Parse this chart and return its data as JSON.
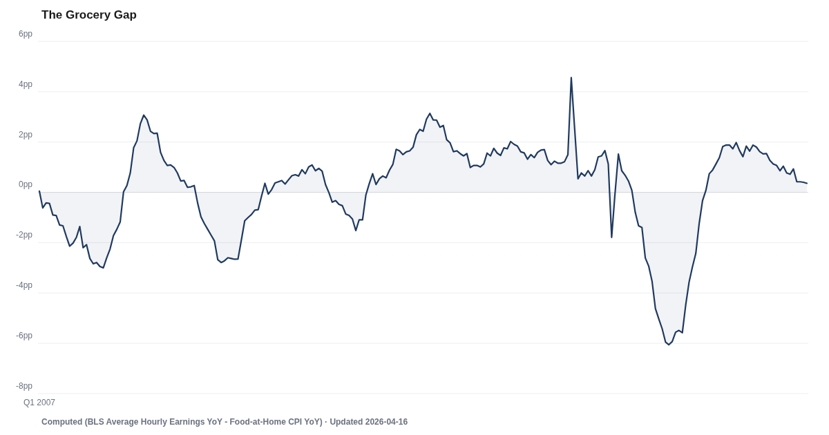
{
  "chart_data": {
    "type": "area",
    "title": "The Grocery Gap",
    "annotations": [
      "Computed (BLS Average Hourly Earnings YoY - Food-at-Home CPI YoY) · Updated 2026-04-16"
    ],
    "categories": [
      "Q1 2007",
      null,
      null,
      null,
      null,
      null,
      null,
      null,
      null,
      null,
      null,
      null,
      null,
      null,
      null,
      null,
      null,
      null,
      null,
      null,
      null,
      null,
      null,
      null,
      null,
      null,
      null,
      null,
      null,
      null,
      null,
      null,
      null,
      null,
      null,
      null,
      null,
      null,
      null,
      null,
      null,
      null,
      null,
      null,
      null,
      null,
      null,
      null,
      null,
      null,
      null,
      null,
      null,
      null,
      null,
      null,
      null,
      null,
      null,
      null,
      null,
      null,
      null,
      null,
      null,
      null,
      null,
      null,
      null,
      null,
      null,
      null,
      null,
      null,
      null,
      null,
      null,
      null,
      null,
      null,
      null,
      null,
      null,
      null,
      null,
      null,
      null,
      null,
      null,
      null,
      null,
      null,
      null,
      null,
      null,
      null,
      null,
      null,
      null,
      null,
      null,
      null,
      null,
      null,
      null,
      null,
      null,
      null,
      null,
      null,
      null,
      null,
      null,
      null,
      null,
      null,
      null,
      null,
      null,
      null,
      null,
      null,
      null,
      null,
      null,
      null,
      null,
      null,
      null,
      null,
      null,
      null,
      null,
      null,
      null,
      null,
      null,
      null,
      null,
      null,
      null,
      null,
      null,
      null,
      null,
      null,
      null,
      null,
      null,
      null,
      null,
      null,
      null,
      null,
      null,
      null,
      null,
      null,
      null,
      null,
      null,
      null,
      null,
      null,
      null,
      null,
      null,
      null,
      null,
      null,
      null,
      null,
      null,
      null,
      null,
      null,
      null,
      null,
      null,
      null,
      null,
      null,
      null,
      null,
      null,
      null,
      null,
      null,
      null,
      null,
      null,
      null,
      null,
      null,
      null,
      null,
      null,
      null,
      null,
      null,
      null,
      null,
      null,
      null,
      null,
      null,
      null,
      null,
      null,
      null,
      null,
      null,
      null,
      null,
      null,
      null,
      null,
      null,
      null,
      null,
      null,
      null,
      null,
      null,
      null,
      null,
      null,
      null,
      null
    ],
    "series": [
      {
        "color": "#1f3a5f",
        "values": [
          0.05,
          -0.62,
          -0.42,
          -0.44,
          -0.9,
          -0.92,
          -1.3,
          -1.33,
          -1.75,
          -2.14,
          -2.02,
          -1.79,
          -1.36,
          -2.2,
          -2.08,
          -2.63,
          -2.84,
          -2.79,
          -2.95,
          -3.0,
          -2.6,
          -2.25,
          -1.72,
          -1.47,
          -1.18,
          0.02,
          0.27,
          0.77,
          1.77,
          2.05,
          2.73,
          3.07,
          2.88,
          2.43,
          2.34,
          2.35,
          1.59,
          1.27,
          1.07,
          1.09,
          0.99,
          0.77,
          0.45,
          0.47,
          0.2,
          0.22,
          0.27,
          -0.42,
          -0.97,
          -1.24,
          -1.47,
          -1.7,
          -1.93,
          -2.68,
          -2.79,
          -2.72,
          -2.6,
          -2.63,
          -2.66,
          -2.65,
          -1.9,
          -1.13,
          -1.0,
          -0.88,
          -0.71,
          -0.69,
          -0.15,
          0.36,
          -0.07,
          0.11,
          0.37,
          0.42,
          0.47,
          0.33,
          0.5,
          0.66,
          0.7,
          0.65,
          0.9,
          0.74,
          1.01,
          1.09,
          0.86,
          0.95,
          0.84,
          0.31,
          -0.01,
          -0.39,
          -0.33,
          -0.48,
          -0.53,
          -0.86,
          -0.92,
          -1.06,
          -1.52,
          -1.09,
          -1.09,
          -0.1,
          0.35,
          0.74,
          0.31,
          0.54,
          0.65,
          0.58,
          0.88,
          1.11,
          1.71,
          1.65,
          1.5,
          1.61,
          1.65,
          1.79,
          2.29,
          2.5,
          2.43,
          2.91,
          3.14,
          2.88,
          2.87,
          2.59,
          2.66,
          2.09,
          1.97,
          1.62,
          1.65,
          1.54,
          1.45,
          1.54,
          0.99,
          1.07,
          1.07,
          1.01,
          1.13,
          1.56,
          1.45,
          1.75,
          1.56,
          1.47,
          1.77,
          1.73,
          2.02,
          1.91,
          1.84,
          1.61,
          1.57,
          1.32,
          1.5,
          1.38,
          1.59,
          1.68,
          1.7,
          1.27,
          1.1,
          1.24,
          1.16,
          1.16,
          1.22,
          1.5,
          4.56,
          2.55,
          0.54,
          0.77,
          0.65,
          0.86,
          0.65,
          0.9,
          1.41,
          1.45,
          1.66,
          1.13,
          -1.79,
          -0.05,
          1.52,
          0.86,
          0.68,
          0.45,
          0.08,
          -0.79,
          -1.33,
          -1.4,
          -2.61,
          -2.93,
          -3.53,
          -4.62,
          -5.03,
          -5.42,
          -5.95,
          -6.06,
          -5.93,
          -5.56,
          -5.49,
          -5.58,
          -4.48,
          -3.57,
          -2.96,
          -2.43,
          -1.24,
          -0.33,
          0.08,
          0.74,
          0.89,
          1.13,
          1.38,
          1.82,
          1.88,
          1.88,
          1.73,
          1.98,
          1.66,
          1.42,
          1.84,
          1.64,
          1.88,
          1.8,
          1.62,
          1.53,
          1.54,
          1.27,
          1.13,
          1.07,
          0.86,
          1.04,
          0.77,
          0.72,
          0.93,
          0.42,
          0.42,
          0.4,
          0.36
        ]
      }
    ],
    "ylim": [
      -8,
      6
    ],
    "yticks": [
      {
        "value": 6,
        "label": "6pp"
      },
      {
        "value": 4,
        "label": "4pp"
      },
      {
        "value": 2,
        "label": "2pp"
      },
      {
        "value": 0,
        "label": "0pp"
      },
      {
        "value": -2,
        "label": "-2pp"
      },
      {
        "value": -4,
        "label": "-4pp"
      },
      {
        "value": -6,
        "label": "-6pp"
      },
      {
        "value": -8,
        "label": "-8pp"
      }
    ],
    "grid": "y"
  }
}
